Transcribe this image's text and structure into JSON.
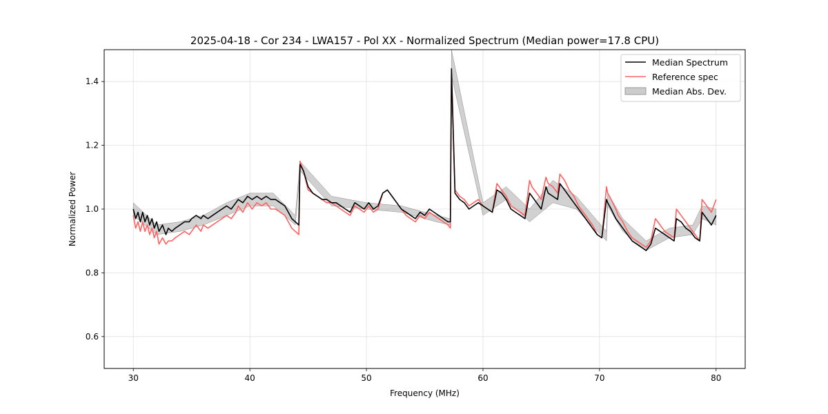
{
  "chart_data": {
    "type": "line",
    "title": "2025-04-18 - Cor 234 - LWA157 - Pol XX - Normalized Spectrum (Median power=17.8 CPU)",
    "xlabel": "Frequency (MHz)",
    "ylabel": "Normalized Power",
    "xlim": [
      27.5,
      82.5
    ],
    "ylim": [
      0.5,
      1.5
    ],
    "xticks": [
      30,
      40,
      50,
      60,
      70,
      80
    ],
    "yticks": [
      0.6,
      0.8,
      1.0,
      1.2,
      1.4
    ],
    "xtick_labels": [
      "30",
      "40",
      "50",
      "60",
      "70",
      "80"
    ],
    "ytick_labels": [
      "0.6",
      "0.8",
      "1.0",
      "1.2",
      "1.4"
    ],
    "grid": true,
    "legend_position": "top-right",
    "legend": [
      "Median Spectrum",
      "Reference spec",
      "Median Abs. Dev."
    ],
    "colors": {
      "median": "#000000",
      "reference": "#ff6060",
      "mad_fill": "#999999",
      "mad_edge": "#888888",
      "grid": "#e0e0e0"
    },
    "series": [
      {
        "name": "Median Spectrum",
        "x": [
          30.0,
          30.2,
          30.4,
          30.6,
          30.8,
          31.0,
          31.2,
          31.4,
          31.6,
          31.8,
          32.0,
          32.2,
          32.5,
          32.8,
          33.0,
          33.3,
          33.6,
          34.0,
          34.4,
          34.8,
          35.0,
          35.4,
          35.8,
          36.0,
          36.4,
          36.8,
          37.2,
          37.6,
          38.0,
          38.4,
          38.8,
          39.0,
          39.4,
          39.8,
          40.2,
          40.6,
          41.0,
          41.4,
          41.8,
          42.2,
          42.6,
          43.0,
          43.3,
          43.6,
          43.9,
          44.2,
          44.3,
          44.6,
          45.0,
          45.4,
          45.8,
          46.2,
          46.6,
          47.0,
          47.4,
          47.8,
          48.2,
          48.6,
          49.0,
          49.4,
          49.8,
          50.2,
          50.6,
          51.0,
          51.4,
          51.8,
          52.2,
          52.6,
          53.0,
          53.4,
          53.8,
          54.2,
          54.6,
          55.0,
          55.4,
          55.8,
          56.2,
          56.6,
          57.0,
          57.2,
          57.3,
          57.6,
          58.0,
          58.4,
          58.8,
          59.2,
          59.6,
          60.0,
          60.4,
          60.8,
          61.2,
          61.6,
          62.0,
          62.4,
          62.8,
          63.2,
          63.6,
          64.0,
          64.2,
          64.6,
          65.0,
          65.4,
          65.6,
          66.0,
          66.4,
          66.6,
          67.0,
          67.4,
          67.8,
          68.2,
          68.6,
          69.0,
          69.4,
          69.8,
          70.2,
          70.6,
          70.7,
          71.0,
          71.4,
          71.6,
          72.0,
          72.4,
          72.8,
          73.2,
          73.6,
          74.0,
          74.4,
          74.8,
          75.2,
          75.6,
          76.0,
          76.4,
          76.6,
          77.0,
          77.4,
          77.8,
          78.2,
          78.6,
          78.8,
          79.2,
          79.6,
          80.0
        ],
        "values": [
          1.0,
          0.97,
          0.99,
          0.96,
          0.99,
          0.96,
          0.98,
          0.95,
          0.97,
          0.94,
          0.96,
          0.93,
          0.95,
          0.92,
          0.94,
          0.93,
          0.94,
          0.95,
          0.96,
          0.96,
          0.97,
          0.98,
          0.97,
          0.98,
          0.97,
          0.98,
          0.99,
          1.0,
          1.01,
          1.0,
          1.02,
          1.03,
          1.02,
          1.04,
          1.03,
          1.04,
          1.03,
          1.04,
          1.03,
          1.03,
          1.02,
          1.01,
          0.99,
          0.97,
          0.96,
          0.95,
          1.14,
          1.12,
          1.07,
          1.05,
          1.04,
          1.03,
          1.03,
          1.02,
          1.02,
          1.01,
          1.0,
          0.99,
          1.02,
          1.01,
          1.0,
          1.02,
          1.0,
          1.01,
          1.05,
          1.06,
          1.04,
          1.02,
          1.0,
          0.99,
          0.98,
          0.97,
          0.99,
          0.98,
          1.0,
          0.99,
          0.98,
          0.97,
          0.96,
          0.96,
          1.44,
          1.05,
          1.03,
          1.02,
          1.0,
          1.01,
          1.02,
          1.01,
          1.0,
          0.99,
          1.06,
          1.05,
          1.03,
          1.0,
          0.99,
          0.98,
          0.97,
          1.05,
          1.04,
          1.02,
          1.0,
          1.07,
          1.05,
          1.04,
          1.03,
          1.08,
          1.06,
          1.04,
          1.02,
          1.0,
          0.98,
          0.96,
          0.94,
          0.92,
          0.91,
          1.03,
          1.02,
          1.0,
          0.97,
          0.96,
          0.94,
          0.92,
          0.9,
          0.89,
          0.88,
          0.87,
          0.89,
          0.94,
          0.93,
          0.92,
          0.91,
          0.9,
          0.97,
          0.96,
          0.94,
          0.93,
          0.91,
          0.9,
          0.99,
          0.97,
          0.95,
          0.98
        ]
      },
      {
        "name": "Reference spec",
        "x": [
          30.0,
          30.2,
          30.4,
          30.6,
          30.8,
          31.0,
          31.2,
          31.4,
          31.6,
          31.8,
          32.0,
          32.2,
          32.5,
          32.8,
          33.0,
          33.3,
          33.6,
          34.0,
          34.4,
          34.8,
          35.0,
          35.4,
          35.8,
          36.0,
          36.4,
          36.8,
          37.2,
          37.6,
          38.0,
          38.4,
          38.8,
          39.0,
          39.4,
          39.8,
          40.2,
          40.6,
          41.0,
          41.4,
          41.8,
          42.2,
          42.6,
          43.0,
          43.3,
          43.6,
          43.9,
          44.2,
          44.3,
          44.6,
          45.0,
          45.4,
          45.8,
          46.2,
          46.6,
          47.0,
          47.4,
          47.8,
          48.2,
          48.6,
          49.0,
          49.4,
          49.8,
          50.2,
          50.6,
          51.0,
          51.4,
          51.8,
          52.2,
          52.6,
          53.0,
          53.4,
          53.8,
          54.2,
          54.6,
          55.0,
          55.4,
          55.8,
          56.2,
          56.6,
          57.0,
          57.2,
          57.3,
          57.6,
          58.0,
          58.4,
          58.8,
          59.2,
          59.6,
          60.0,
          60.4,
          60.8,
          61.2,
          61.6,
          62.0,
          62.4,
          62.8,
          63.2,
          63.6,
          64.0,
          64.2,
          64.6,
          65.0,
          65.4,
          65.6,
          66.0,
          66.4,
          66.6,
          67.0,
          67.4,
          67.8,
          68.2,
          68.6,
          69.0,
          69.4,
          69.8,
          70.2,
          70.6,
          70.7,
          71.0,
          71.4,
          71.6,
          72.0,
          72.4,
          72.8,
          73.2,
          73.6,
          74.0,
          74.4,
          74.8,
          75.2,
          75.6,
          76.0,
          76.4,
          76.6,
          77.0,
          77.4,
          77.8,
          78.2,
          78.6,
          78.8,
          79.2,
          79.6,
          80.0
        ],
        "values": [
          0.98,
          0.94,
          0.96,
          0.93,
          0.96,
          0.93,
          0.95,
          0.92,
          0.94,
          0.91,
          0.93,
          0.89,
          0.91,
          0.89,
          0.9,
          0.9,
          0.91,
          0.92,
          0.93,
          0.92,
          0.93,
          0.95,
          0.93,
          0.95,
          0.94,
          0.95,
          0.96,
          0.97,
          0.98,
          0.97,
          0.99,
          1.01,
          0.99,
          1.02,
          1.0,
          1.02,
          1.01,
          1.02,
          1.0,
          1.0,
          0.99,
          0.98,
          0.96,
          0.94,
          0.93,
          0.92,
          1.15,
          1.12,
          1.06,
          1.05,
          1.04,
          1.03,
          1.02,
          1.02,
          1.01,
          1.0,
          0.99,
          0.98,
          1.01,
          1.0,
          0.99,
          1.01,
          0.99,
          1.0,
          1.05,
          1.06,
          1.04,
          1.02,
          1.0,
          0.98,
          0.97,
          0.96,
          0.98,
          0.97,
          0.99,
          0.98,
          0.97,
          0.96,
          0.95,
          0.94,
          1.43,
          1.06,
          1.04,
          1.03,
          1.01,
          1.02,
          1.03,
          1.01,
          1.0,
          0.99,
          1.08,
          1.06,
          1.04,
          1.01,
          1.0,
          0.99,
          0.98,
          1.09,
          1.07,
          1.05,
          1.03,
          1.1,
          1.08,
          1.07,
          1.05,
          1.11,
          1.09,
          1.06,
          1.04,
          1.01,
          0.99,
          0.97,
          0.95,
          0.92,
          0.91,
          1.07,
          1.05,
          1.03,
          1.0,
          0.98,
          0.96,
          0.93,
          0.91,
          0.9,
          0.89,
          0.88,
          0.9,
          0.97,
          0.95,
          0.93,
          0.92,
          0.91,
          1.0,
          0.98,
          0.96,
          0.94,
          0.92,
          0.9,
          1.03,
          1.01,
          0.99,
          1.03
        ]
      }
    ],
    "mad_band": {
      "name": "Median Abs. Dev.",
      "x": [
        30.0,
        32.0,
        34.0,
        36.0,
        38.0,
        40.0,
        42.0,
        43.9,
        44.3,
        47.0,
        50.0,
        53.0,
        56.0,
        57.2,
        57.3,
        60.0,
        62.0,
        64.0,
        66.0,
        68.0,
        70.6,
        70.7,
        72.0,
        74.0,
        76.0,
        78.0,
        78.8,
        80.0
      ],
      "lower": [
        0.98,
        0.92,
        0.93,
        0.95,
        0.98,
        1.01,
        1.01,
        0.95,
        1.12,
        1.01,
        1.0,
        0.99,
        0.96,
        0.95,
        1.42,
        0.98,
        1.03,
        0.96,
        1.02,
        1.0,
        0.9,
        1.01,
        0.93,
        0.87,
        0.91,
        0.92,
        0.97,
        0.95
      ],
      "upper": [
        1.02,
        0.95,
        0.96,
        0.98,
        1.02,
        1.05,
        1.05,
        0.98,
        1.15,
        1.04,
        1.02,
        1.01,
        0.98,
        0.97,
        1.5,
        1.02,
        1.07,
        1.0,
        1.09,
        1.04,
        0.93,
        1.05,
        0.97,
        0.9,
        0.94,
        0.95,
        1.01,
        1.0
      ]
    }
  }
}
